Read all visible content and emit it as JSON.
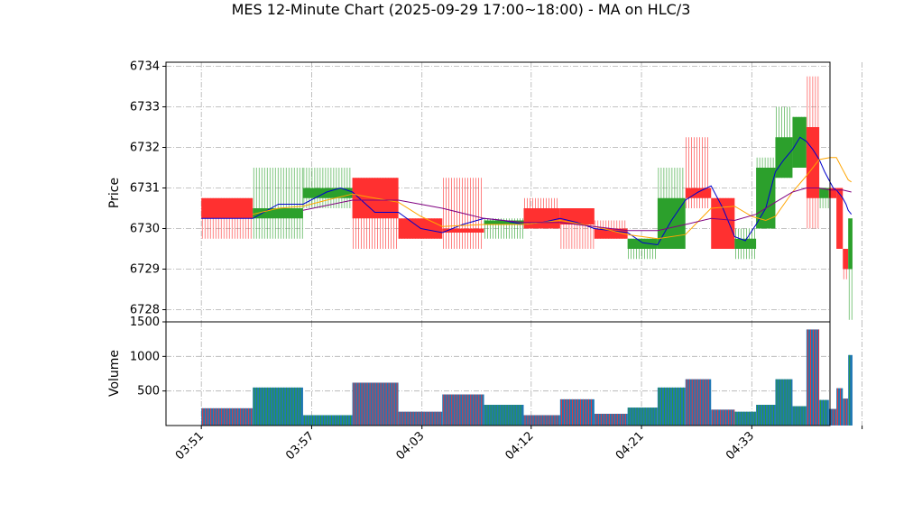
{
  "chart_data": {
    "type": "candlestick",
    "title": "MES 12-Minute Chart (2025-09-29 17:00~18:00) - MA on HLC/3",
    "price_panel": {
      "ylabel": "Price",
      "ylim": [
        6727.7,
        6734.1
      ],
      "yticks": [
        6728,
        6729,
        6730,
        6731,
        6732,
        6733,
        6734
      ]
    },
    "volume_panel": {
      "ylabel": "Volume",
      "ylim": [
        0,
        1500
      ],
      "yticks": [
        500,
        1000,
        1500
      ]
    },
    "xlim": [
      0,
      62
    ],
    "xticks": [
      {
        "x": 3.3,
        "label": "03:51"
      },
      {
        "x": 13.6,
        "label": "03:57"
      },
      {
        "x": 23.9,
        "label": "04:03"
      },
      {
        "x": 34.1,
        "label": "04:12"
      },
      {
        "x": 44.4,
        "label": "04:21"
      },
      {
        "x": 54.7,
        "label": "04:33"
      },
      {
        "x": 65.0,
        "label": ""
      }
    ],
    "grid": true,
    "colors": {
      "up": "#2ca02c",
      "down": "#ff3030",
      "volume_fill": "#1f77b4",
      "ma_fast": "#0000cd",
      "ma_mid": "#ffa500",
      "ma_slow": "#800080"
    },
    "candles": [
      {
        "x0": 3.3,
        "x1": 8.1,
        "open": 6730.75,
        "close": 6730.25,
        "high": 6730.75,
        "low": 6729.75,
        "volume": 250
      },
      {
        "x0": 8.1,
        "x1": 12.8,
        "open": 6730.25,
        "close": 6730.5,
        "high": 6731.5,
        "low": 6729.75,
        "volume": 550
      },
      {
        "x0": 12.8,
        "x1": 17.4,
        "open": 6730.75,
        "close": 6731.0,
        "high": 6731.5,
        "low": 6730.5,
        "volume": 150
      },
      {
        "x0": 17.4,
        "x1": 21.7,
        "open": 6731.25,
        "close": 6730.25,
        "high": 6731.25,
        "low": 6729.5,
        "volume": 620
      },
      {
        "x0": 21.7,
        "x1": 25.8,
        "open": 6730.25,
        "close": 6729.75,
        "high": 6730.25,
        "low": 6729.75,
        "volume": 200
      },
      {
        "x0": 25.8,
        "x1": 29.7,
        "open": 6730.0,
        "close": 6729.9,
        "high": 6731.25,
        "low": 6729.5,
        "volume": 450
      },
      {
        "x0": 29.7,
        "x1": 33.4,
        "open": 6730.1,
        "close": 6730.2,
        "high": 6730.25,
        "low": 6729.75,
        "volume": 300
      },
      {
        "x0": 33.4,
        "x1": 36.8,
        "open": 6730.5,
        "close": 6730.0,
        "high": 6730.75,
        "low": 6730.0,
        "volume": 150
      },
      {
        "x0": 36.8,
        "x1": 40.0,
        "open": 6730.5,
        "close": 6730.1,
        "high": 6730.5,
        "low": 6729.5,
        "volume": 380
      },
      {
        "x0": 40.0,
        "x1": 43.1,
        "open": 6730.0,
        "close": 6729.75,
        "high": 6730.2,
        "low": 6729.75,
        "volume": 170
      },
      {
        "x0": 43.1,
        "x1": 45.9,
        "open": 6729.5,
        "close": 6729.75,
        "high": 6729.75,
        "low": 6729.25,
        "volume": 260
      },
      {
        "x0": 45.9,
        "x1": 48.5,
        "open": 6729.5,
        "close": 6730.75,
        "high": 6731.5,
        "low": 6729.5,
        "volume": 550
      },
      {
        "x0": 48.5,
        "x1": 50.9,
        "open": 6731.0,
        "close": 6730.75,
        "high": 6732.25,
        "low": 6730.5,
        "volume": 670
      },
      {
        "x0": 50.9,
        "x1": 53.1,
        "open": 6730.75,
        "close": 6729.5,
        "high": 6730.75,
        "low": 6729.5,
        "volume": 230
      },
      {
        "x0": 53.1,
        "x1": 55.1,
        "open": 6729.5,
        "close": 6729.75,
        "high": 6730.0,
        "low": 6729.25,
        "volume": 200
      },
      {
        "x0": 55.1,
        "x1": 56.9,
        "open": 6730.0,
        "close": 6731.5,
        "high": 6731.75,
        "low": 6730.0,
        "volume": 300
      },
      {
        "x0": 56.9,
        "x1": 58.5,
        "open": 6731.25,
        "close": 6732.25,
        "high": 6733.0,
        "low": 6731.25,
        "volume": 670
      },
      {
        "x0": 58.5,
        "x1": 59.8,
        "open": 6731.5,
        "close": 6732.75,
        "high": 6732.75,
        "low": 6731.5,
        "volume": 280
      },
      {
        "x0": 59.8,
        "x1": 61.0,
        "open": 6732.5,
        "close": 6730.75,
        "high": 6733.75,
        "low": 6730.0,
        "volume": 1390
      },
      {
        "x0": 61.0,
        "x1": 61.9,
        "open": 6730.75,
        "close": 6731.0,
        "high": 6731.0,
        "low": 6730.5,
        "volume": 370
      },
      {
        "x0": 61.9,
        "x1": 62.6,
        "open": 6731.0,
        "close": 6730.75,
        "high": 6731.0,
        "low": 6730.75,
        "volume": 240
      },
      {
        "x0": 62.6,
        "x1": 63.2,
        "open": 6731.0,
        "close": 6729.5,
        "high": 6731.0,
        "low": 6729.5,
        "volume": 540
      },
      {
        "x0": 63.2,
        "x1": 63.7,
        "open": 6729.5,
        "close": 6729.0,
        "high": 6729.5,
        "low": 6728.75,
        "volume": 390
      },
      {
        "x0": 63.7,
        "x1": 64.1,
        "open": 6729.0,
        "close": 6730.25,
        "high": 6730.25,
        "low": 6727.75,
        "volume": 1020
      }
    ],
    "series": [
      {
        "color": "#0000cd",
        "points": [
          [
            3.3,
            6730.25
          ],
          [
            8.1,
            6730.25
          ],
          [
            10.5,
            6730.6
          ],
          [
            12.8,
            6730.6
          ],
          [
            15.0,
            6730.9
          ],
          [
            16.3,
            6731.0
          ],
          [
            17.4,
            6730.9
          ],
          [
            19.5,
            6730.4
          ],
          [
            21.7,
            6730.4
          ],
          [
            23.8,
            6730.0
          ],
          [
            25.8,
            6729.9
          ],
          [
            27.7,
            6730.1
          ],
          [
            29.7,
            6730.25
          ],
          [
            31.5,
            6730.2
          ],
          [
            33.4,
            6730.1
          ],
          [
            35.1,
            6730.15
          ],
          [
            36.8,
            6730.25
          ],
          [
            38.4,
            6730.15
          ],
          [
            40.0,
            6730.0
          ],
          [
            41.5,
            6729.95
          ],
          [
            43.1,
            6729.9
          ],
          [
            44.5,
            6729.65
          ],
          [
            45.9,
            6729.6
          ],
          [
            47.2,
            6730.2
          ],
          [
            48.5,
            6730.7
          ],
          [
            49.7,
            6730.9
          ],
          [
            50.9,
            6731.05
          ],
          [
            52.0,
            6730.5
          ],
          [
            53.1,
            6729.8
          ],
          [
            54.1,
            6729.7
          ],
          [
            55.1,
            6730.1
          ],
          [
            56.0,
            6730.5
          ],
          [
            56.9,
            6731.4
          ],
          [
            57.7,
            6731.7
          ],
          [
            58.5,
            6731.95
          ],
          [
            59.2,
            6732.25
          ],
          [
            59.8,
            6732.15
          ],
          [
            60.4,
            6731.95
          ],
          [
            61.0,
            6731.7
          ],
          [
            61.5,
            6731.4
          ],
          [
            61.9,
            6731.2
          ],
          [
            62.3,
            6731.0
          ],
          [
            62.6,
            6730.95
          ],
          [
            62.9,
            6730.85
          ],
          [
            63.2,
            6730.75
          ],
          [
            63.5,
            6730.6
          ],
          [
            63.7,
            6730.45
          ],
          [
            64.0,
            6730.35
          ]
        ]
      },
      {
        "color": "#ffa500",
        "points": [
          [
            8.1,
            6730.35
          ],
          [
            10.5,
            6730.5
          ],
          [
            12.8,
            6730.55
          ],
          [
            15.0,
            6730.7
          ],
          [
            17.4,
            6730.85
          ],
          [
            19.5,
            6730.75
          ],
          [
            21.7,
            6730.65
          ],
          [
            23.8,
            6730.3
          ],
          [
            25.8,
            6730.05
          ],
          [
            29.7,
            6730.1
          ],
          [
            33.4,
            6730.1
          ],
          [
            36.8,
            6730.2
          ],
          [
            40.0,
            6730.05
          ],
          [
            43.1,
            6729.85
          ],
          [
            45.9,
            6729.75
          ],
          [
            48.5,
            6729.85
          ],
          [
            50.9,
            6730.5
          ],
          [
            53.1,
            6730.55
          ],
          [
            54.7,
            6730.3
          ],
          [
            56.0,
            6730.2
          ],
          [
            56.9,
            6730.3
          ],
          [
            58.5,
            6730.9
          ],
          [
            59.8,
            6731.3
          ],
          [
            61.0,
            6731.7
          ],
          [
            62.0,
            6731.75
          ],
          [
            62.6,
            6731.75
          ],
          [
            63.2,
            6731.45
          ],
          [
            63.7,
            6731.2
          ],
          [
            64.0,
            6731.15
          ]
        ]
      },
      {
        "color": "#800080",
        "points": [
          [
            12.8,
            6730.45
          ],
          [
            17.4,
            6730.7
          ],
          [
            21.7,
            6730.7
          ],
          [
            25.8,
            6730.5
          ],
          [
            29.7,
            6730.25
          ],
          [
            33.4,
            6730.15
          ],
          [
            36.8,
            6730.15
          ],
          [
            40.0,
            6730.05
          ],
          [
            43.1,
            6729.95
          ],
          [
            45.9,
            6729.95
          ],
          [
            48.5,
            6730.1
          ],
          [
            50.9,
            6730.25
          ],
          [
            53.1,
            6730.2
          ],
          [
            55.1,
            6730.35
          ],
          [
            56.9,
            6730.65
          ],
          [
            58.5,
            6730.9
          ],
          [
            59.8,
            6731.0
          ],
          [
            61.0,
            6731.0
          ],
          [
            62.0,
            6730.95
          ],
          [
            63.2,
            6730.95
          ],
          [
            64.0,
            6730.9
          ]
        ]
      }
    ]
  }
}
